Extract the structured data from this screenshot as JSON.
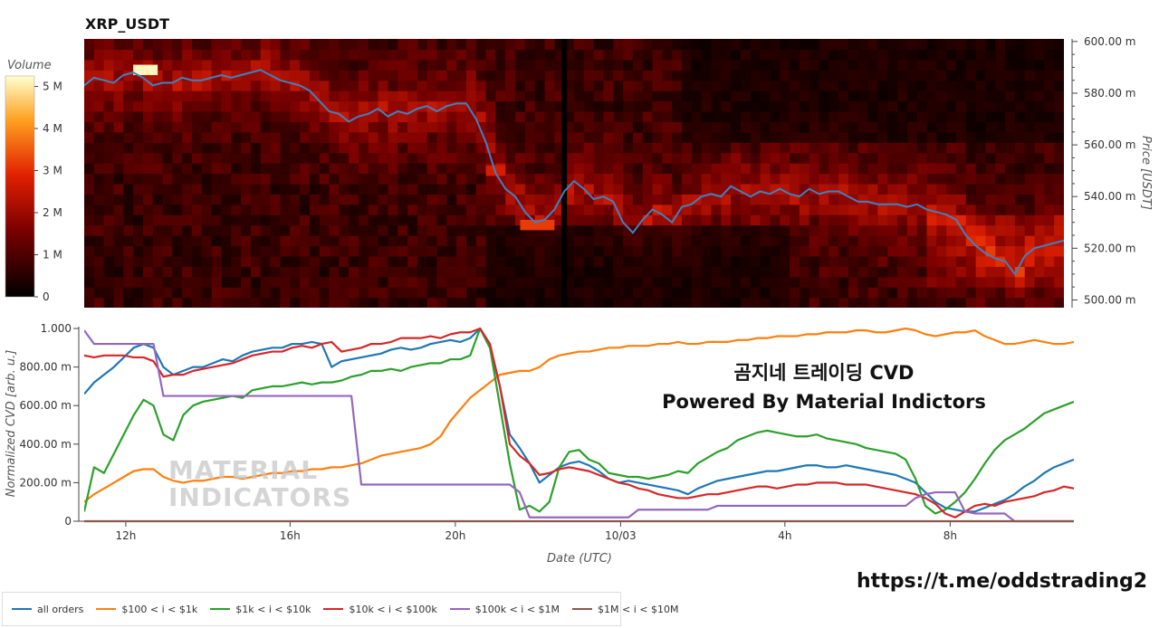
{
  "chart_data": [
    {
      "type": "heatmap",
      "title": "XRP_USDT",
      "ylabel": "Price [USDT]",
      "colorbar_label": "Volume",
      "colorbar_ticks": [
        "0",
        "1 M",
        "2 M",
        "3 M",
        "4 M",
        "5 M"
      ],
      "y_ticks": [
        "500.00 m",
        "520.00 m",
        "540.00 m",
        "560.00 m",
        "580.00 m",
        "600.00 m"
      ],
      "ylim": [
        0.497,
        0.601
      ],
      "price_series": {
        "name": "price",
        "color": "#3b82c4",
        "x": [
          0,
          1,
          2,
          3,
          4,
          5,
          6,
          7,
          8,
          9,
          10,
          11,
          12,
          13,
          14,
          15,
          16,
          17,
          18,
          19,
          20,
          21,
          22,
          23,
          24,
          25,
          26,
          27,
          28,
          29,
          30,
          31,
          32,
          33,
          34,
          35,
          36,
          37,
          38,
          39,
          40,
          41,
          42,
          43,
          44,
          45,
          46,
          47,
          48,
          49,
          50,
          51,
          52,
          53,
          54,
          55,
          56,
          57,
          58,
          59,
          60,
          61,
          62,
          63,
          64,
          65,
          66,
          67,
          68,
          69,
          70,
          71,
          72,
          73,
          74,
          75,
          76,
          77,
          78,
          79,
          80,
          81,
          82,
          83,
          84,
          85,
          86,
          87,
          88,
          89,
          90,
          91,
          92,
          93,
          94,
          95,
          96,
          97,
          98,
          99,
          100
        ],
        "values": [
          0.583,
          0.586,
          0.585,
          0.584,
          0.587,
          0.588,
          0.586,
          0.583,
          0.584,
          0.584,
          0.586,
          0.585,
          0.585,
          0.586,
          0.587,
          0.586,
          0.587,
          0.588,
          0.589,
          0.587,
          0.585,
          0.584,
          0.583,
          0.581,
          0.577,
          0.573,
          0.572,
          0.569,
          0.571,
          0.572,
          0.574,
          0.571,
          0.573,
          0.572,
          0.574,
          0.575,
          0.573,
          0.575,
          0.576,
          0.576,
          0.57,
          0.561,
          0.549,
          0.543,
          0.54,
          0.534,
          0.53,
          0.531,
          0.535,
          0.542,
          0.546,
          0.543,
          0.539,
          0.54,
          0.538,
          0.53,
          0.526,
          0.531,
          0.535,
          0.533,
          0.53,
          0.536,
          0.537,
          0.54,
          0.541,
          0.54,
          0.544,
          0.542,
          0.54,
          0.542,
          0.541,
          0.543,
          0.541,
          0.54,
          0.543,
          0.541,
          0.542,
          0.542,
          0.54,
          0.538,
          0.538,
          0.537,
          0.537,
          0.537,
          0.536,
          0.537,
          0.535,
          0.534,
          0.533,
          0.531,
          0.525,
          0.521,
          0.518,
          0.516,
          0.515,
          0.51,
          0.517,
          0.52,
          0.521,
          0.522,
          0.523
        ]
      },
      "hotspots": [
        {
          "t0": 5,
          "t1": 7.5,
          "p": 0.589,
          "level": 5.2
        },
        {
          "t0": 44.5,
          "t1": 48,
          "p": 0.529,
          "level": 3.2
        },
        {
          "t0": 41,
          "t1": 43,
          "p": 0.55,
          "level": 2.8
        }
      ],
      "gap_column": 49
    },
    {
      "type": "line",
      "xlabel": "Date (UTC)",
      "ylabel": "Normalized CVD [arb. u.]",
      "x_ticks": [
        "12h",
        "16h",
        "20h",
        "10/03",
        "4h",
        "8h"
      ],
      "y_ticks": [
        "0",
        "200.00 m",
        "400.00 m",
        "600.00 m",
        "800.00 m",
        "1.000"
      ],
      "ylim": [
        0,
        1.0
      ],
      "x": [
        0,
        1,
        2,
        3,
        4,
        5,
        6,
        7,
        8,
        9,
        10,
        11,
        12,
        13,
        14,
        15,
        16,
        17,
        18,
        19,
        20,
        21,
        22,
        23,
        24,
        25,
        26,
        27,
        28,
        29,
        30,
        31,
        32,
        33,
        34,
        35,
        36,
        37,
        38,
        39,
        40,
        41,
        42,
        43,
        44,
        45,
        46,
        47,
        48,
        49,
        50,
        51,
        52,
        53,
        54,
        55,
        56,
        57,
        58,
        59,
        60,
        61,
        62,
        63,
        64,
        65,
        66,
        67,
        68,
        69,
        70,
        71,
        72,
        73,
        74,
        75,
        76,
        77,
        78,
        79,
        80,
        81,
        82,
        83,
        84,
        85,
        86,
        87,
        88,
        89,
        90,
        91,
        92,
        93,
        94,
        95,
        96,
        97,
        98,
        99,
        100
      ],
      "series": [
        {
          "name": "all orders",
          "color": "#1f77b4",
          "values": [
            0.66,
            0.72,
            0.76,
            0.8,
            0.85,
            0.9,
            0.92,
            0.9,
            0.8,
            0.76,
            0.78,
            0.8,
            0.8,
            0.82,
            0.84,
            0.83,
            0.86,
            0.88,
            0.89,
            0.9,
            0.9,
            0.92,
            0.92,
            0.93,
            0.92,
            0.8,
            0.83,
            0.84,
            0.85,
            0.86,
            0.87,
            0.89,
            0.9,
            0.89,
            0.9,
            0.92,
            0.93,
            0.94,
            0.93,
            0.95,
            1.0,
            0.9,
            0.7,
            0.45,
            0.38,
            0.3,
            0.2,
            0.24,
            0.28,
            0.3,
            0.31,
            0.29,
            0.26,
            0.22,
            0.2,
            0.21,
            0.2,
            0.19,
            0.18,
            0.17,
            0.16,
            0.14,
            0.17,
            0.19,
            0.21,
            0.22,
            0.23,
            0.24,
            0.25,
            0.26,
            0.26,
            0.27,
            0.28,
            0.29,
            0.29,
            0.28,
            0.28,
            0.29,
            0.28,
            0.27,
            0.26,
            0.25,
            0.24,
            0.22,
            0.2,
            0.15,
            0.1,
            0.07,
            0.06,
            0.05,
            0.05,
            0.07,
            0.09,
            0.11,
            0.14,
            0.18,
            0.21,
            0.25,
            0.28,
            0.3,
            0.32
          ]
        },
        {
          "name": "$100 < i < $1k",
          "color": "#ff7f0e",
          "values": [
            0.1,
            0.14,
            0.17,
            0.2,
            0.23,
            0.26,
            0.27,
            0.27,
            0.23,
            0.21,
            0.2,
            0.21,
            0.21,
            0.22,
            0.23,
            0.23,
            0.22,
            0.23,
            0.24,
            0.25,
            0.25,
            0.26,
            0.26,
            0.27,
            0.27,
            0.28,
            0.28,
            0.29,
            0.3,
            0.32,
            0.34,
            0.35,
            0.36,
            0.37,
            0.38,
            0.4,
            0.44,
            0.52,
            0.58,
            0.64,
            0.68,
            0.72,
            0.76,
            0.77,
            0.78,
            0.78,
            0.8,
            0.84,
            0.86,
            0.87,
            0.88,
            0.88,
            0.89,
            0.9,
            0.9,
            0.91,
            0.91,
            0.91,
            0.92,
            0.92,
            0.93,
            0.92,
            0.92,
            0.93,
            0.93,
            0.93,
            0.94,
            0.94,
            0.95,
            0.95,
            0.96,
            0.96,
            0.96,
            0.97,
            0.97,
            0.98,
            0.98,
            0.98,
            0.99,
            0.99,
            0.98,
            0.98,
            0.99,
            1.0,
            0.99,
            0.97,
            0.96,
            0.97,
            0.98,
            0.98,
            0.99,
            0.96,
            0.94,
            0.92,
            0.92,
            0.93,
            0.94,
            0.93,
            0.92,
            0.92,
            0.93
          ]
        },
        {
          "name": "$1k < i < $10k",
          "color": "#2ca02c",
          "values": [
            0.05,
            0.28,
            0.25,
            0.35,
            0.45,
            0.55,
            0.63,
            0.6,
            0.45,
            0.42,
            0.55,
            0.6,
            0.62,
            0.63,
            0.64,
            0.65,
            0.64,
            0.68,
            0.69,
            0.7,
            0.7,
            0.71,
            0.72,
            0.71,
            0.72,
            0.72,
            0.73,
            0.75,
            0.76,
            0.78,
            0.78,
            0.79,
            0.78,
            0.8,
            0.81,
            0.82,
            0.82,
            0.84,
            0.84,
            0.86,
            1.0,
            0.9,
            0.6,
            0.3,
            0.06,
            0.08,
            0.05,
            0.1,
            0.28,
            0.36,
            0.37,
            0.32,
            0.3,
            0.25,
            0.24,
            0.23,
            0.23,
            0.22,
            0.23,
            0.24,
            0.26,
            0.25,
            0.3,
            0.33,
            0.36,
            0.38,
            0.42,
            0.44,
            0.46,
            0.47,
            0.46,
            0.45,
            0.44,
            0.44,
            0.45,
            0.43,
            0.42,
            0.41,
            0.4,
            0.38,
            0.37,
            0.36,
            0.35,
            0.32,
            0.22,
            0.08,
            0.04,
            0.06,
            0.1,
            0.15,
            0.22,
            0.3,
            0.37,
            0.42,
            0.45,
            0.48,
            0.52,
            0.56,
            0.58,
            0.6,
            0.62
          ]
        },
        {
          "name": "$10k < i < $100k",
          "color": "#d62728",
          "values": [
            0.86,
            0.85,
            0.86,
            0.86,
            0.86,
            0.85,
            0.85,
            0.83,
            0.75,
            0.76,
            0.76,
            0.78,
            0.79,
            0.8,
            0.81,
            0.82,
            0.84,
            0.86,
            0.87,
            0.88,
            0.88,
            0.9,
            0.91,
            0.9,
            0.92,
            0.93,
            0.88,
            0.89,
            0.9,
            0.92,
            0.92,
            0.93,
            0.95,
            0.95,
            0.95,
            0.96,
            0.95,
            0.97,
            0.98,
            0.98,
            1.0,
            0.92,
            0.7,
            0.4,
            0.34,
            0.3,
            0.24,
            0.25,
            0.27,
            0.28,
            0.27,
            0.26,
            0.24,
            0.22,
            0.2,
            0.19,
            0.17,
            0.16,
            0.14,
            0.13,
            0.12,
            0.12,
            0.13,
            0.14,
            0.14,
            0.15,
            0.16,
            0.17,
            0.18,
            0.18,
            0.17,
            0.18,
            0.19,
            0.19,
            0.2,
            0.2,
            0.2,
            0.19,
            0.19,
            0.19,
            0.18,
            0.17,
            0.16,
            0.15,
            0.14,
            0.12,
            0.09,
            0.04,
            0.02,
            0.05,
            0.08,
            0.09,
            0.08,
            0.1,
            0.11,
            0.12,
            0.13,
            0.15,
            0.16,
            0.18,
            0.17
          ]
        },
        {
          "name": "$100k < i < $1M",
          "color": "#9467bd",
          "values": [
            0.99,
            0.92,
            0.92,
            0.92,
            0.92,
            0.92,
            0.92,
            0.92,
            0.65,
            0.65,
            0.65,
            0.65,
            0.65,
            0.65,
            0.65,
            0.65,
            0.65,
            0.65,
            0.65,
            0.65,
            0.65,
            0.65,
            0.65,
            0.65,
            0.65,
            0.65,
            0.65,
            0.65,
            0.19,
            0.19,
            0.19,
            0.19,
            0.19,
            0.19,
            0.19,
            0.19,
            0.19,
            0.19,
            0.19,
            0.19,
            0.19,
            0.19,
            0.19,
            0.19,
            0.15,
            0.02,
            0.02,
            0.02,
            0.02,
            0.02,
            0.02,
            0.02,
            0.02,
            0.02,
            0.02,
            0.02,
            0.06,
            0.06,
            0.06,
            0.06,
            0.06,
            0.06,
            0.06,
            0.06,
            0.08,
            0.08,
            0.08,
            0.08,
            0.08,
            0.08,
            0.08,
            0.08,
            0.08,
            0.08,
            0.08,
            0.08,
            0.08,
            0.08,
            0.08,
            0.08,
            0.08,
            0.08,
            0.08,
            0.08,
            0.12,
            0.14,
            0.15,
            0.15,
            0.15,
            0.05,
            0.04,
            0.04,
            0.04,
            0.04,
            0.0,
            0.0,
            0.0,
            0.0,
            0.0,
            0.0,
            0.0
          ]
        },
        {
          "name": "$1M < i < $10M",
          "color": "#8c564b",
          "values": [
            0,
            0,
            0,
            0,
            0,
            0,
            0,
            0,
            0,
            0,
            0,
            0,
            0,
            0,
            0,
            0,
            0,
            0,
            0,
            0,
            0,
            0,
            0,
            0,
            0,
            0,
            0,
            0,
            0,
            0,
            0,
            0,
            0,
            0,
            0,
            0,
            0,
            0,
            0,
            0,
            0,
            0,
            0,
            0,
            0,
            0,
            0,
            0,
            0,
            0,
            0,
            0,
            0,
            0,
            0,
            0,
            0,
            0,
            0,
            0,
            0,
            0,
            0,
            0,
            0,
            0,
            0,
            0,
            0,
            0,
            0,
            0,
            0,
            0,
            0,
            0,
            0,
            0,
            0,
            0,
            0,
            0,
            0,
            0,
            0,
            0,
            0,
            0,
            0,
            0,
            0,
            0,
            0,
            0,
            0,
            0,
            0,
            0,
            0,
            0,
            0
          ]
        }
      ]
    }
  ],
  "overlay": {
    "line1": "곰지네 트레이딩 CVD",
    "line2": "Powered By Material Indictors"
  },
  "watermark": {
    "line1": "MATERIAL",
    "line2": "INDICATORS"
  },
  "url": "https://t.me/oddstrading2"
}
